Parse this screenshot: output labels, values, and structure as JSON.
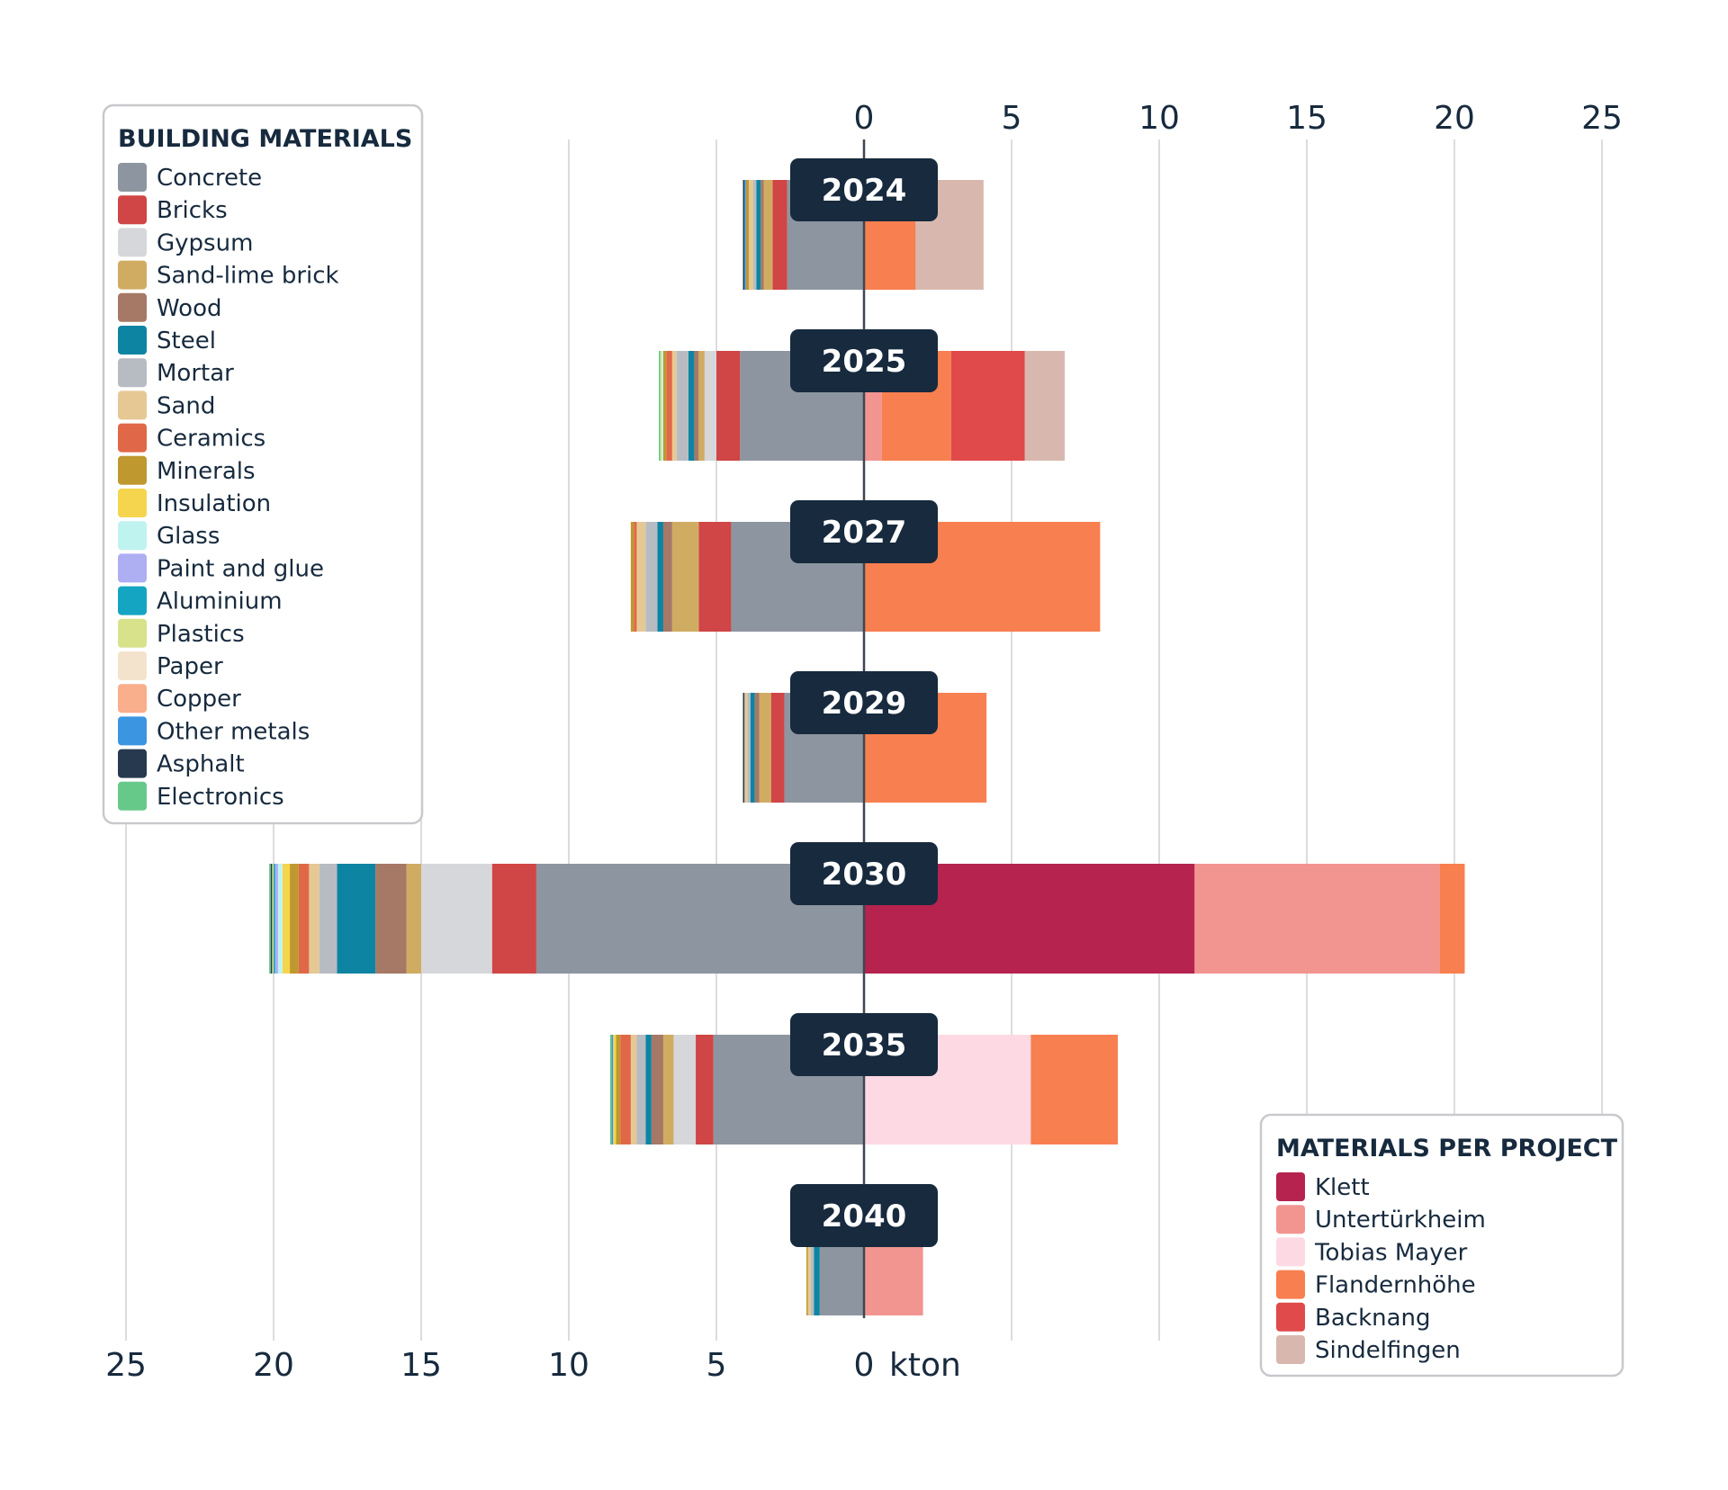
{
  "chart_data": {
    "type": "bar",
    "orientation": "horizontal-diverging",
    "unit": "kton",
    "left_axis": {
      "ticks": [
        "25",
        "20",
        "15",
        "10",
        "5",
        "0"
      ],
      "range": [
        0,
        25
      ],
      "unit_label": "kton"
    },
    "right_axis": {
      "ticks": [
        "0",
        "5",
        "10",
        "15",
        "20",
        "25"
      ],
      "range": [
        0,
        25
      ]
    },
    "materials_legend_title": "BUILDING MATERIALS",
    "projects_legend_title": "MATERIALS PER PROJECT",
    "materials": [
      {
        "name": "Concrete",
        "color": "#8d95a0"
      },
      {
        "name": "Bricks",
        "color": "#d04545"
      },
      {
        "name": "Gypsum",
        "color": "#d6d7db"
      },
      {
        "name": "Sand-lime brick",
        "color": "#d0ac62"
      },
      {
        "name": "Wood",
        "color": "#a67866"
      },
      {
        "name": "Steel",
        "color": "#0e84a3"
      },
      {
        "name": "Mortar",
        "color": "#b7bcc2"
      },
      {
        "name": "Sand",
        "color": "#e6c895"
      },
      {
        "name": "Ceramics",
        "color": "#e06848"
      },
      {
        "name": "Minerals",
        "color": "#bf982f"
      },
      {
        "name": "Insulation",
        "color": "#f6d54e"
      },
      {
        "name": "Glass",
        "color": "#bff3ef"
      },
      {
        "name": "Paint and glue",
        "color": "#aeaef3"
      },
      {
        "name": "Aluminium",
        "color": "#14a5c2"
      },
      {
        "name": "Plastics",
        "color": "#d7e28a"
      },
      {
        "name": "Paper",
        "color": "#f4e3cc"
      },
      {
        "name": "Copper",
        "color": "#f9ae8c"
      },
      {
        "name": "Other metals",
        "color": "#3c95e1"
      },
      {
        "name": "Asphalt",
        "color": "#26394e"
      },
      {
        "name": "Electronics",
        "color": "#66c98a"
      }
    ],
    "projects": [
      {
        "name": "Klett",
        "color": "#b5234e"
      },
      {
        "name": "Untertürkheim",
        "color": "#f29591"
      },
      {
        "name": "Tobias Mayer",
        "color": "#fdd9e3"
      },
      {
        "name": "Flandernhöhe",
        "color": "#f77f50"
      },
      {
        "name": "Backnang",
        "color": "#e04a4a"
      },
      {
        "name": "Sindelfingen",
        "color": "#d8b8ae"
      }
    ],
    "years": [
      {
        "year": "2024",
        "materials": {
          "Concrete": 2.6,
          "Bricks": 0.5,
          "Sand-lime brick": 0.3,
          "Wood": 0.1,
          "Steel": 0.15,
          "Mortar": 0.1,
          "Sand": 0.15,
          "Minerals": 0.1,
          "Other metals": 0.05,
          "Asphalt": 0.05
        },
        "projects": {
          "Flandernhöhe": 1.75,
          "Sindelfingen": 2.3
        }
      },
      {
        "year": "2025",
        "materials": {
          "Concrete": 4.2,
          "Bricks": 0.8,
          "Gypsum": 0.4,
          "Sand-lime brick": 0.2,
          "Wood": 0.15,
          "Steel": 0.2,
          "Mortar": 0.4,
          "Sand": 0.15,
          "Ceramics": 0.2,
          "Minerals": 0.1,
          "Glass": 0.05,
          "Plastics": 0.05,
          "Electronics": 0.05
        },
        "projects": {
          "Untertürkheim": 0.6,
          "Flandernhöhe": 2.35,
          "Backnang": 2.5,
          "Sindelfingen": 1.35
        }
      },
      {
        "year": "2027",
        "materials": {
          "Concrete": 4.5,
          "Bricks": 1.1,
          "Sand-lime brick": 0.9,
          "Wood": 0.3,
          "Steel": 0.2,
          "Mortar": 0.4,
          "Sand": 0.3,
          "Ceramics": 0.1,
          "Minerals": 0.1
        },
        "projects": {
          "Flandernhöhe": 8.0
        }
      },
      {
        "year": "2029",
        "materials": {
          "Concrete": 2.7,
          "Bricks": 0.45,
          "Sand-lime brick": 0.4,
          "Wood": 0.15,
          "Steel": 0.15,
          "Mortar": 0.1,
          "Sand": 0.1,
          "Asphalt": 0.05
        },
        "projects": {
          "Flandernhöhe": 4.15
        }
      },
      {
        "year": "2030",
        "materials": {
          "Concrete": 11.1,
          "Bricks": 1.5,
          "Gypsum": 2.4,
          "Sand-lime brick": 0.5,
          "Wood": 1.05,
          "Steel": 1.3,
          "Mortar": 0.6,
          "Sand": 0.35,
          "Ceramics": 0.35,
          "Minerals": 0.3,
          "Insulation": 0.25,
          "Glass": 0.15,
          "Paint and glue": 0.1,
          "Aluminium": 0.05,
          "Plastics": 0.05,
          "Electronics": 0.05,
          "Asphalt": 0.05
        },
        "projects": {
          "Klett": 11.2,
          "Untertürkheim": 8.3,
          "Flandernhöhe": 0.85
        }
      },
      {
        "year": "2035",
        "materials": {
          "Concrete": 5.1,
          "Bricks": 0.6,
          "Gypsum": 0.75,
          "Sand-lime brick": 0.35,
          "Wood": 0.4,
          "Steel": 0.2,
          "Mortar": 0.3,
          "Sand": 0.2,
          "Ceramics": 0.35,
          "Minerals": 0.15,
          "Insulation": 0.1,
          "Other metals": 0.05,
          "Electronics": 0.05
        },
        "projects": {
          "Tobias Mayer": 5.65,
          "Flandernhöhe": 2.95
        }
      },
      {
        "year": "2040",
        "materials": {
          "Concrete": 1.5,
          "Steel": 0.2,
          "Mortar": 0.1,
          "Sand": 0.1,
          "Minerals": 0.05
        },
        "projects": {
          "Untertürkheim": 2.0
        }
      }
    ]
  }
}
